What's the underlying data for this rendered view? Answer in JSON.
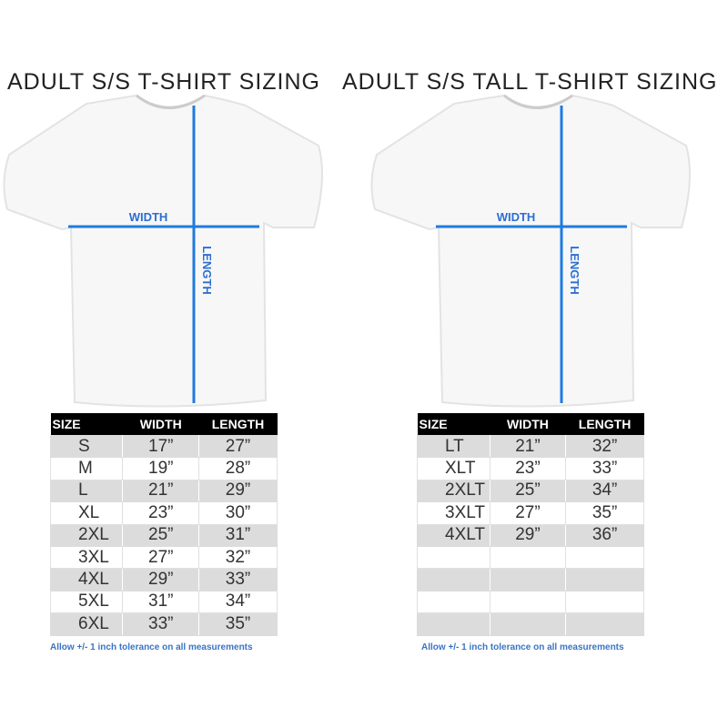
{
  "accent_color": "#1e7be0",
  "left": {
    "title": "ADULT S/S T-SHIRT SIZING",
    "width_label": "WIDTH",
    "length_label": "LENGTH",
    "headers": [
      "SIZE",
      "WIDTH",
      "LENGTH"
    ],
    "rows": [
      [
        "S",
        "17”",
        "27”"
      ],
      [
        "M",
        "19”",
        "28”"
      ],
      [
        "L",
        "21”",
        "29”"
      ],
      [
        "XL",
        "23”",
        "30”"
      ],
      [
        "2XL",
        "25”",
        "31”"
      ],
      [
        "3XL",
        "27”",
        "32”"
      ],
      [
        "4XL",
        "29”",
        "33”"
      ],
      [
        "5XL",
        "31”",
        "34”"
      ],
      [
        "6XL",
        "33”",
        "35”"
      ]
    ],
    "note": "Allow +/- 1 inch tolerance on all measurements"
  },
  "right": {
    "title": "ADULT S/S TALL T-SHIRT SIZING",
    "width_label": "WIDTH",
    "length_label": "LENGTH",
    "headers": [
      "SIZE",
      "WIDTH",
      "LENGTH"
    ],
    "rows": [
      [
        "LT",
        "21”",
        "32”"
      ],
      [
        "XLT",
        "23”",
        "33”"
      ],
      [
        "2XLT",
        "25”",
        "34”"
      ],
      [
        "3XLT",
        "27”",
        "35”"
      ],
      [
        "4XLT",
        "29”",
        "36”"
      ],
      [
        "",
        "",
        ""
      ],
      [
        "",
        "",
        ""
      ],
      [
        "",
        "",
        ""
      ],
      [
        "",
        "",
        ""
      ]
    ],
    "note": "Allow +/- 1 inch tolerance on all measurements"
  }
}
